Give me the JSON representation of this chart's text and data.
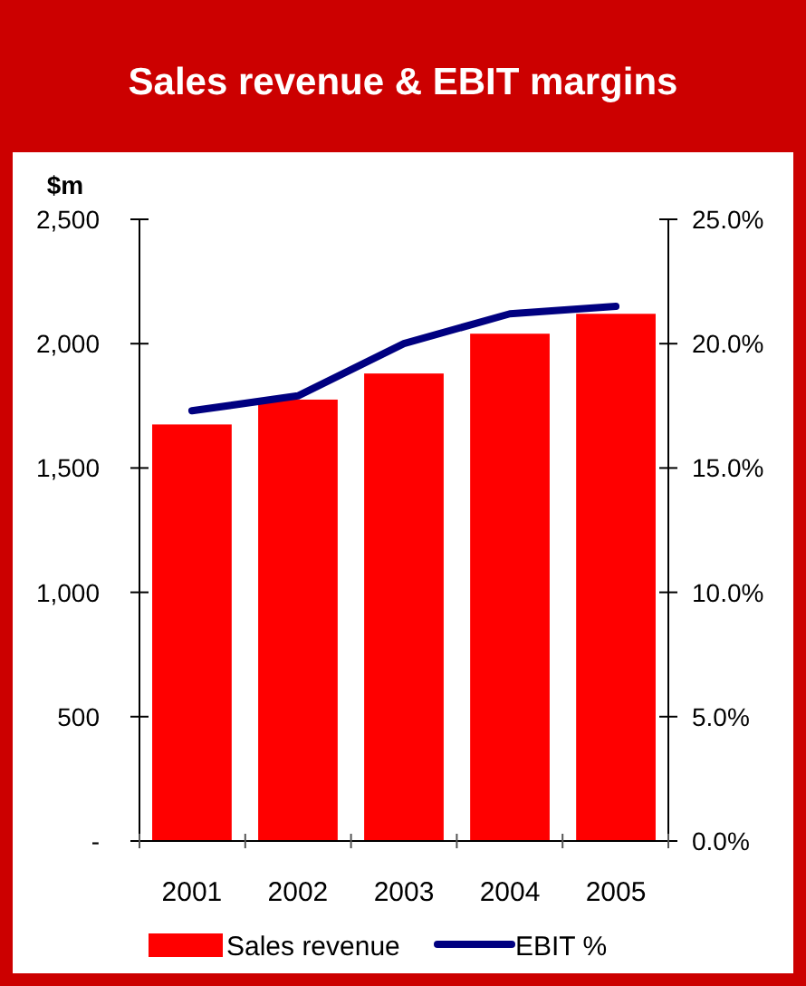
{
  "chart_data": {
    "type": "bar",
    "title": "Sales revenue & EBIT margins",
    "ylabel": "$m",
    "categories": [
      "2001",
      "2002",
      "2003",
      "2004",
      "2005"
    ],
    "series": [
      {
        "name": "Sales revenue",
        "color": "#ff0000",
        "values": [
          1675,
          1775,
          1880,
          2040,
          2120
        ]
      },
      {
        "name": "EBIT %",
        "type": "line",
        "axis": "y2",
        "color": "#000080",
        "values": [
          17.3,
          17.9,
          20.0,
          21.2,
          21.5
        ]
      }
    ],
    "ylim": [
      0,
      2500
    ],
    "yticks": [
      {
        "value": 0,
        "label": "-"
      },
      {
        "value": 500,
        "label": "500"
      },
      {
        "value": 1000,
        "label": "1,000"
      },
      {
        "value": 1500,
        "label": "1,500"
      },
      {
        "value": 2000,
        "label": "2,000"
      },
      {
        "value": 2500,
        "label": "2,500"
      }
    ],
    "y2lim": [
      0,
      25
    ],
    "y2ticks": [
      {
        "value": 0,
        "label": "0.0%"
      },
      {
        "value": 5,
        "label": "5.0%"
      },
      {
        "value": 10,
        "label": "10.0%"
      },
      {
        "value": 15,
        "label": "15.0%"
      },
      {
        "value": 20,
        "label": "20.0%"
      },
      {
        "value": 25,
        "label": "25.0%"
      }
    ],
    "grid": false,
    "legend": "bottom",
    "marker": "none",
    "line_style": "solid"
  }
}
